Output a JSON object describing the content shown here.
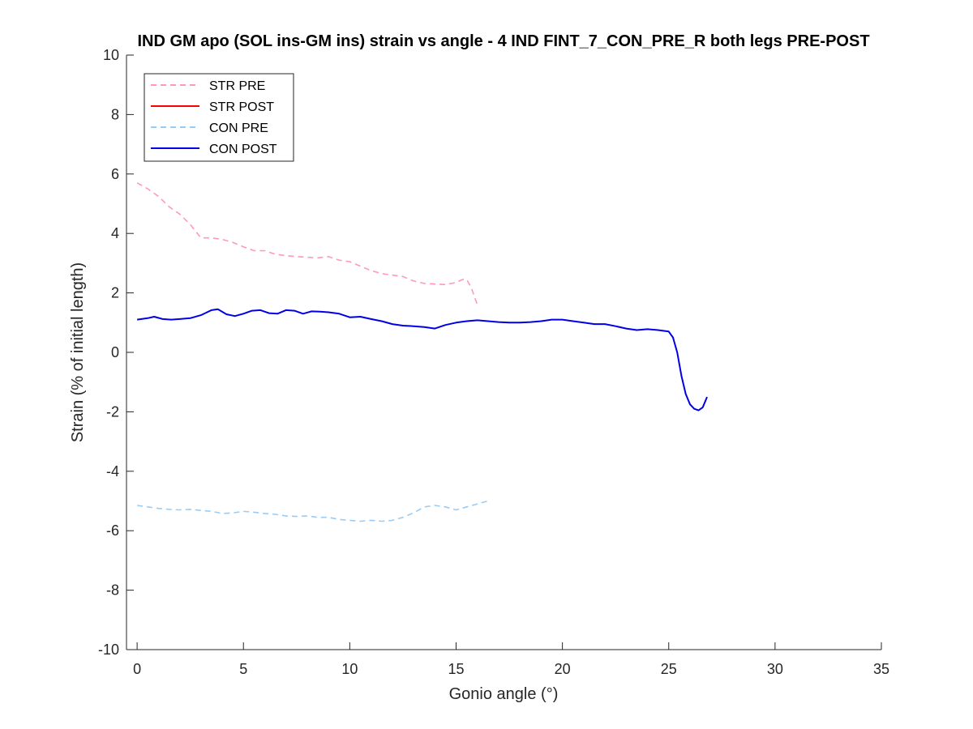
{
  "chart_data": {
    "type": "line",
    "title": "IND GM apo (SOL ins-GM ins) strain vs angle - 4 IND FINT_7_CON_PRE_R both legs PRE-POST",
    "xlabel": "Gonio angle (°)",
    "ylabel": "Strain (% of initial length)",
    "xlim": [
      -0.5,
      35
    ],
    "ylim": [
      -10,
      10
    ],
    "xticks": [
      0,
      5,
      10,
      15,
      20,
      25,
      30,
      35
    ],
    "yticks": [
      -10,
      -8,
      -6,
      -4,
      -2,
      0,
      2,
      4,
      6,
      8,
      10
    ],
    "grid": false,
    "legend_position": "top-left",
    "series": [
      {
        "name": "STR PRE",
        "color": "#ff99bb",
        "dash": "dashed",
        "x": [
          0,
          0.5,
          1,
          1.5,
          2,
          2.5,
          3,
          3.5,
          4,
          4.5,
          5,
          5.5,
          6,
          6.5,
          7,
          7.5,
          8,
          8.5,
          9,
          9.5,
          10,
          10.5,
          11,
          11.5,
          12,
          12.5,
          13,
          13.5,
          14,
          14.5,
          15,
          15.3,
          15.5,
          15.7,
          16
        ],
        "values": [
          5.7,
          5.5,
          5.25,
          4.9,
          4.65,
          4.3,
          3.85,
          3.85,
          3.8,
          3.7,
          3.55,
          3.42,
          3.42,
          3.3,
          3.25,
          3.22,
          3.2,
          3.18,
          3.22,
          3.1,
          3.05,
          2.9,
          2.75,
          2.65,
          2.6,
          2.55,
          2.4,
          2.32,
          2.3,
          2.28,
          2.35,
          2.45,
          2.45,
          2.2,
          1.6
        ]
      },
      {
        "name": "STR POST",
        "color": "#ff0000",
        "dash": "solid",
        "x": [],
        "values": []
      },
      {
        "name": "CON PRE",
        "color": "#99ccf5",
        "dash": "dashed",
        "x": [
          0,
          0.5,
          1,
          1.5,
          2,
          2.5,
          3,
          3.5,
          4,
          4.5,
          5,
          5.5,
          6,
          6.5,
          7,
          7.5,
          8,
          8.5,
          9,
          9.5,
          10,
          10.5,
          11,
          11.5,
          12,
          12.5,
          13,
          13.5,
          14,
          14.5,
          15,
          15.5,
          16,
          16.5
        ],
        "values": [
          -5.15,
          -5.2,
          -5.25,
          -5.28,
          -5.3,
          -5.28,
          -5.32,
          -5.35,
          -5.42,
          -5.4,
          -5.35,
          -5.38,
          -5.42,
          -5.45,
          -5.5,
          -5.52,
          -5.5,
          -5.55,
          -5.55,
          -5.62,
          -5.65,
          -5.68,
          -5.65,
          -5.68,
          -5.65,
          -5.55,
          -5.4,
          -5.2,
          -5.15,
          -5.2,
          -5.3,
          -5.2,
          -5.1,
          -5.0
        ]
      },
      {
        "name": "CON POST",
        "color": "#0000e6",
        "dash": "solid",
        "x": [
          0,
          0.5,
          0.8,
          1.2,
          1.6,
          2,
          2.5,
          3,
          3.5,
          3.8,
          4.2,
          4.6,
          5,
          5.4,
          5.8,
          6.2,
          6.6,
          7,
          7.4,
          7.8,
          8.2,
          8.6,
          9,
          9.5,
          10,
          10.5,
          11,
          11.5,
          12,
          12.5,
          13,
          13.5,
          14,
          14.5,
          15,
          15.5,
          16,
          16.5,
          17,
          17.5,
          18,
          18.5,
          19,
          19.5,
          20,
          20.5,
          21,
          21.5,
          22,
          22.5,
          23,
          23.5,
          24,
          24.5,
          25,
          25.2,
          25.4,
          25.6,
          25.8,
          26,
          26.2,
          26.4,
          26.6,
          26.8
        ],
        "values": [
          1.1,
          1.15,
          1.2,
          1.12,
          1.1,
          1.12,
          1.15,
          1.25,
          1.42,
          1.45,
          1.28,
          1.22,
          1.3,
          1.4,
          1.42,
          1.32,
          1.3,
          1.42,
          1.4,
          1.3,
          1.38,
          1.37,
          1.35,
          1.3,
          1.18,
          1.2,
          1.12,
          1.05,
          0.95,
          0.9,
          0.88,
          0.85,
          0.8,
          0.92,
          1.0,
          1.05,
          1.08,
          1.05,
          1.02,
          1.0,
          1.0,
          1.02,
          1.05,
          1.1,
          1.1,
          1.05,
          1.0,
          0.95,
          0.95,
          0.88,
          0.8,
          0.75,
          0.78,
          0.75,
          0.7,
          0.5,
          0.0,
          -0.8,
          -1.4,
          -1.75,
          -1.9,
          -1.95,
          -1.85,
          -1.5
        ]
      }
    ]
  }
}
